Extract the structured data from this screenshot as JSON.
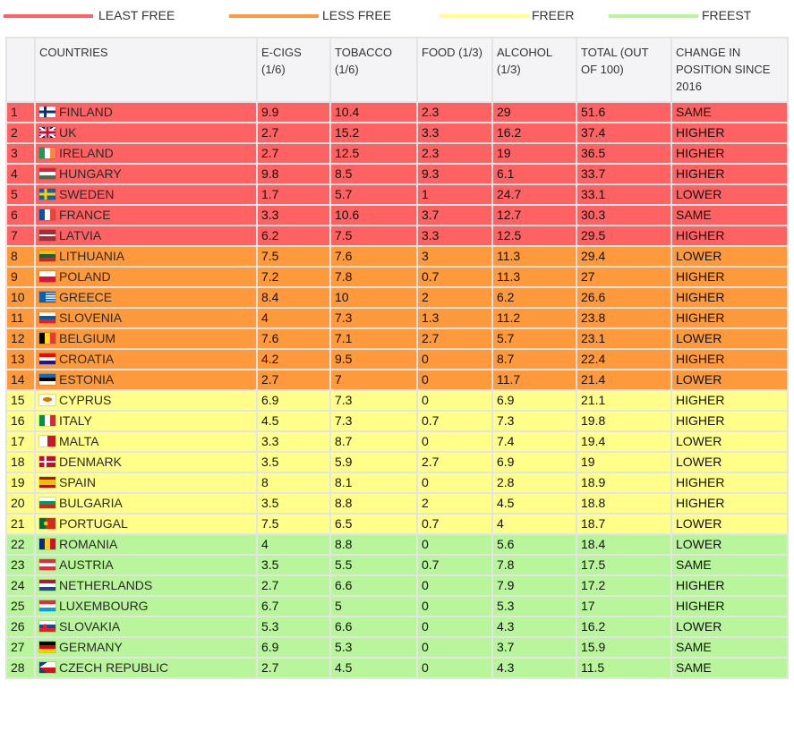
{
  "legend": [
    {
      "label": "LEAST FREE",
      "color": "#ff6262"
    },
    {
      "label": "LESS FREE",
      "color": "#ff9a3c"
    },
    {
      "label": "FREER",
      "color": "#ffff8a"
    },
    {
      "label": "FREEST",
      "color": "#b9f59a"
    }
  ],
  "columns": [
    "",
    "COUNTRIES",
    "E-CIGS (1/6)",
    "TOBACCO (1/6)",
    "FOOD (1/3)",
    "ALCOHOL (1/3)",
    "TOTAL (OUT OF 100)",
    "CHANGE IN POSITION SINCE 2016"
  ],
  "rows": [
    {
      "rank": "1",
      "country": "FINLAND",
      "flag": "finland-flag",
      "ecigs": "9.9",
      "tobacco": "10.4",
      "food": "2.3",
      "alcohol": "29",
      "total": "51.6",
      "change": "SAME",
      "tier": 0
    },
    {
      "rank": "2",
      "country": "UK",
      "flag": "uk-flag",
      "ecigs": "2.7",
      "tobacco": "15.2",
      "food": "3.3",
      "alcohol": "16.2",
      "total": "37.4",
      "change": "HIGHER",
      "tier": 0
    },
    {
      "rank": "3",
      "country": "IRELAND",
      "flag": "ireland-flag",
      "ecigs": "2.7",
      "tobacco": "12.5",
      "food": "2.3",
      "alcohol": "19",
      "total": "36.5",
      "change": "HIGHER",
      "tier": 0
    },
    {
      "rank": "4",
      "country": "HUNGARY",
      "flag": "hungary-flag",
      "ecigs": "9.8",
      "tobacco": "8.5",
      "food": "9.3",
      "alcohol": "6.1",
      "total": "33.7",
      "change": "HIGHER",
      "tier": 0
    },
    {
      "rank": "5",
      "country": "SWEDEN",
      "flag": "sweden-flag",
      "ecigs": "1.7",
      "tobacco": "5.7",
      "food": "1",
      "alcohol": "24.7",
      "total": "33.1",
      "change": "LOWER",
      "tier": 0
    },
    {
      "rank": "6",
      "country": "FRANCE",
      "flag": "france-flag",
      "ecigs": "3.3",
      "tobacco": "10.6",
      "food": "3.7",
      "alcohol": "12.7",
      "total": "30.3",
      "change": "SAME",
      "tier": 0
    },
    {
      "rank": "7",
      "country": "LATVIA",
      "flag": "latvia-flag",
      "ecigs": "6.2",
      "tobacco": "7.5",
      "food": "3.3",
      "alcohol": "12.5",
      "total": "29.5",
      "change": "HIGHER",
      "tier": 0
    },
    {
      "rank": "8",
      "country": "LITHUANIA",
      "flag": "lithuania-flag",
      "ecigs": "7.5",
      "tobacco": "7.6",
      "food": "3",
      "alcohol": "11.3",
      "total": "29.4",
      "change": "LOWER",
      "tier": 1
    },
    {
      "rank": "9",
      "country": "POLAND",
      "flag": "poland-flag",
      "ecigs": "7.2",
      "tobacco": "7.8",
      "food": "0.7",
      "alcohol": "11.3",
      "total": "27",
      "change": "HIGHER",
      "tier": 1
    },
    {
      "rank": "10",
      "country": "GREECE",
      "flag": "greece-flag",
      "ecigs": "8.4",
      "tobacco": "10",
      "food": "2",
      "alcohol": "6.2",
      "total": "26.6",
      "change": "HIGHER",
      "tier": 1
    },
    {
      "rank": "11",
      "country": "SLOVENIA",
      "flag": "slovenia-flag",
      "ecigs": "4",
      "tobacco": "7.3",
      "food": "1.3",
      "alcohol": "11.2",
      "total": "23.8",
      "change": "HIGHER",
      "tier": 1
    },
    {
      "rank": "12",
      "country": "BELGIUM",
      "flag": "belgium-flag",
      "ecigs": "7.6",
      "tobacco": "7.1",
      "food": "2.7",
      "alcohol": "5.7",
      "total": "23.1",
      "change": "LOWER",
      "tier": 1
    },
    {
      "rank": "13",
      "country": "CROATIA",
      "flag": "croatia-flag",
      "ecigs": "4.2",
      "tobacco": "9.5",
      "food": "0",
      "alcohol": "8.7",
      "total": "22.4",
      "change": "HIGHER",
      "tier": 1
    },
    {
      "rank": "14",
      "country": "ESTONIA",
      "flag": "estonia-flag",
      "ecigs": "2.7",
      "tobacco": "7",
      "food": "0",
      "alcohol": "11.7",
      "total": "21.4",
      "change": "LOWER",
      "tier": 1
    },
    {
      "rank": "15",
      "country": "CYPRUS",
      "flag": "cyprus-flag",
      "ecigs": "6.9",
      "tobacco": "7.3",
      "food": "0",
      "alcohol": "6.9",
      "total": "21.1",
      "change": "HIGHER",
      "tier": 2
    },
    {
      "rank": "16",
      "country": "ITALY",
      "flag": "italy-flag",
      "ecigs": "4.5",
      "tobacco": "7.3",
      "food": "0.7",
      "alcohol": "7.3",
      "total": "19.8",
      "change": "HIGHER",
      "tier": 2
    },
    {
      "rank": "17",
      "country": "MALTA",
      "flag": "malta-flag",
      "ecigs": "3.3",
      "tobacco": "8.7",
      "food": "0",
      "alcohol": "7.4",
      "total": "19.4",
      "change": "LOWER",
      "tier": 2
    },
    {
      "rank": "18",
      "country": "DENMARK",
      "flag": "denmark-flag",
      "ecigs": "3.5",
      "tobacco": "5.9",
      "food": "2.7",
      "alcohol": "6.9",
      "total": "19",
      "change": "LOWER",
      "tier": 2
    },
    {
      "rank": "19",
      "country": "SPAIN",
      "flag": "spain-flag",
      "ecigs": "8",
      "tobacco": "8.1",
      "food": "0",
      "alcohol": "2.8",
      "total": "18.9",
      "change": "HIGHER",
      "tier": 2
    },
    {
      "rank": "20",
      "country": "BULGARIA",
      "flag": "bulgaria-flag",
      "ecigs": "3.5",
      "tobacco": "8.8",
      "food": "2",
      "alcohol": "4.5",
      "total": "18.8",
      "change": "HIGHER",
      "tier": 2
    },
    {
      "rank": "21",
      "country": "PORTUGAL",
      "flag": "portugal-flag",
      "ecigs": "7.5",
      "tobacco": "6.5",
      "food": "0.7",
      "alcohol": "4",
      "total": "18.7",
      "change": "LOWER",
      "tier": 2
    },
    {
      "rank": "22",
      "country": "ROMANIA",
      "flag": "romania-flag",
      "ecigs": "4",
      "tobacco": "8.8",
      "food": "0",
      "alcohol": "5.6",
      "total": "18.4",
      "change": "LOWER",
      "tier": 3
    },
    {
      "rank": "23",
      "country": "AUSTRIA",
      "flag": "austria-flag",
      "ecigs": "3.5",
      "tobacco": "5.5",
      "food": "0.7",
      "alcohol": "7.8",
      "total": "17.5",
      "change": "SAME",
      "tier": 3
    },
    {
      "rank": "24",
      "country": "NETHERLANDS",
      "flag": "netherlands-flag",
      "ecigs": "2.7",
      "tobacco": "6.6",
      "food": "0",
      "alcohol": "7.9",
      "total": "17.2",
      "change": "HIGHER",
      "tier": 3
    },
    {
      "rank": "25",
      "country": "LUXEMBOURG",
      "flag": "luxembourg-flag",
      "ecigs": "6.7",
      "tobacco": "5",
      "food": "0",
      "alcohol": "5.3",
      "total": "17",
      "change": "HIGHER",
      "tier": 3
    },
    {
      "rank": "26",
      "country": "SLOVAKIA",
      "flag": "slovakia-flag",
      "ecigs": "5.3",
      "tobacco": "6.6",
      "food": "0",
      "alcohol": "4.3",
      "total": "16.2",
      "change": "LOWER",
      "tier": 3
    },
    {
      "rank": "27",
      "country": "GERMANY",
      "flag": "germany-flag",
      "ecigs": "6.9",
      "tobacco": "5.3",
      "food": "0",
      "alcohol": "3.7",
      "total": "15.9",
      "change": "SAME",
      "tier": 3
    },
    {
      "rank": "28",
      "country": "CZECH REPUBLIC",
      "flag": "czech-republic-flag",
      "ecigs": "2.7",
      "tobacco": "4.5",
      "food": "0",
      "alcohol": "4.3",
      "total": "11.5",
      "change": "SAME",
      "tier": 3
    }
  ]
}
